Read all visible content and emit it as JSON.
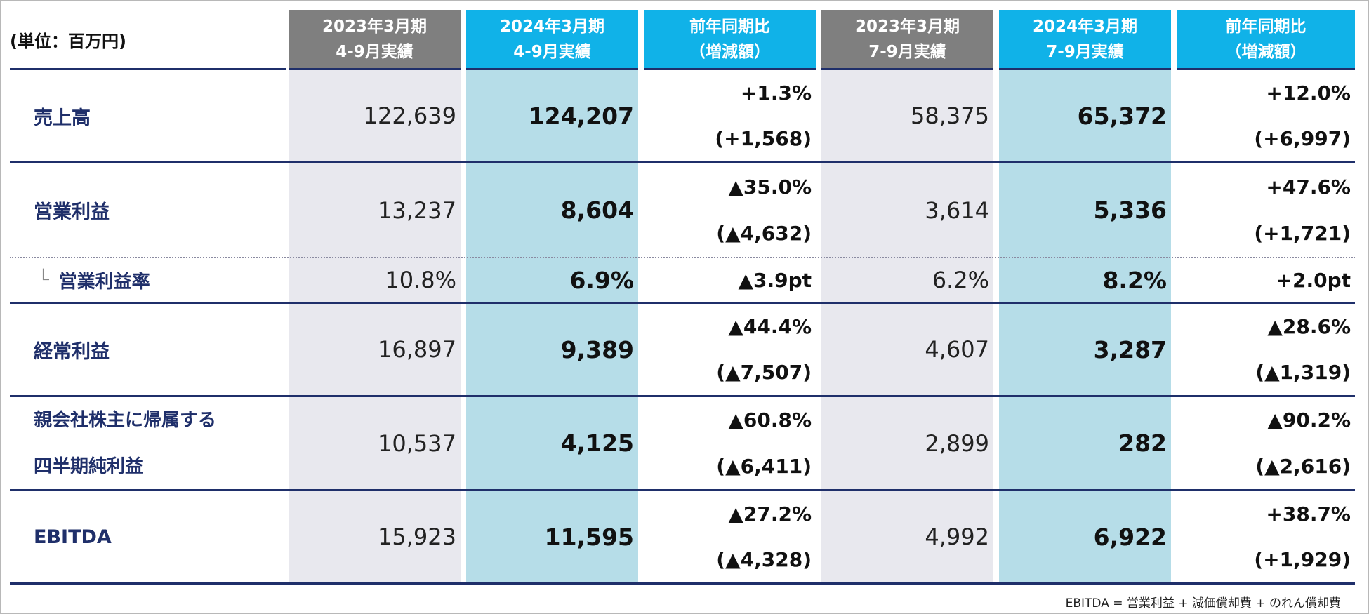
{
  "unit_label": "(単位：百万円)",
  "headers": [
    {
      "line1": "2023年3月期",
      "line2": "4-9月実績"
    },
    {
      "line1": "2024年3月期",
      "line2": "4-9月実績"
    },
    {
      "line1": "前年同期比",
      "line2": "（増減額）"
    },
    {
      "line1": "2023年3月期",
      "line2": "7-9月実績"
    },
    {
      "line1": "2024年3月期",
      "line2": "7-9月実績"
    },
    {
      "line1": "前年同期比",
      "line2": "（増減額）"
    }
  ],
  "rows": [
    {
      "label": "売上高",
      "h1_prev": "122,639",
      "h1_curr": "124,207",
      "h1_pct": "+1.3%",
      "h1_diff": "(+1,568)",
      "q_prev": "58,375",
      "q_curr": "65,372",
      "q_pct": "+12.0%",
      "q_diff": "(+6,997)"
    },
    {
      "label": "営業利益",
      "h1_prev": "13,237",
      "h1_curr": "8,604",
      "h1_pct": "▲35.0%",
      "h1_diff": "(▲4,632)",
      "q_prev": "3,614",
      "q_curr": "5,336",
      "q_pct": "+47.6%",
      "q_diff": "(+1,721)"
    },
    {
      "label_prefix": "└",
      "label": "営業利益率",
      "h1_prev": "10.8%",
      "h1_curr": "6.9%",
      "h1_pct": "▲3.9pt",
      "q_prev": "6.2%",
      "q_curr": "8.2%",
      "q_pct": "+2.0pt"
    },
    {
      "label": "経常利益",
      "h1_prev": "16,897",
      "h1_curr": "9,389",
      "h1_pct": "▲44.4%",
      "h1_diff": "(▲7,507)",
      "q_prev": "4,607",
      "q_curr": "3,287",
      "q_pct": "▲28.6%",
      "q_diff": "(▲1,319)"
    },
    {
      "label": "親会社株主に帰属する",
      "label_line2": "四半期純利益",
      "h1_prev": "10,537",
      "h1_curr": "4,125",
      "h1_pct": "▲60.8%",
      "h1_diff": "(▲6,411)",
      "q_prev": "2,899",
      "q_curr": "282",
      "q_pct": "▲90.2%",
      "q_diff": "(▲2,616)"
    },
    {
      "label": "EBITDA",
      "h1_prev": "15,923",
      "h1_curr": "11,595",
      "h1_pct": "▲27.2%",
      "h1_diff": "(▲4,328)",
      "q_prev": "4,992",
      "q_curr": "6,922",
      "q_pct": "+38.7%",
      "q_diff": "(+1,929)"
    }
  ],
  "footnote": "EBITDA = 営業利益 + 減価償却費 + のれん償却費",
  "colors": {
    "header_gray": "#7f7f7f",
    "header_blue": "#10b2e8",
    "col_gray": "#e8e8ee",
    "col_blue": "#b6dde8",
    "navy": "#1f2f6a"
  }
}
